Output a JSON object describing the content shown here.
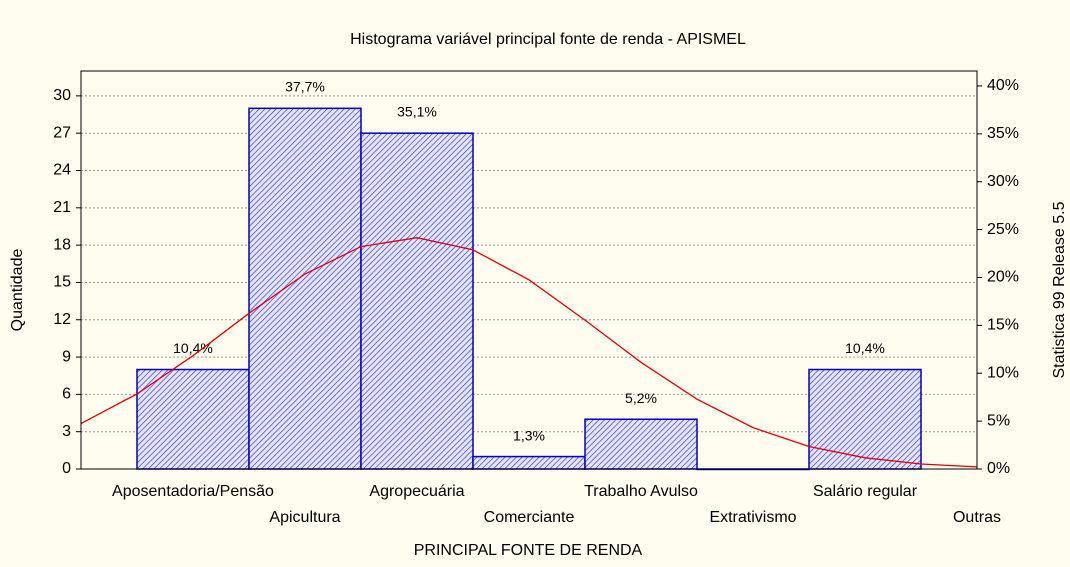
{
  "chart_data": {
    "type": "histogram",
    "title": "Histograma variável principal fonte de renda - APISMEL",
    "x_label": "PRINCIPAL FONTE DE RENDA",
    "y_label": "Quantidade",
    "y2_label": "Statistica 99 Release 5.5",
    "categories": [
      "Aposentadoria/Pensão",
      "Apicultura",
      "Agropecuária",
      "Comerciante",
      "Trabalho Avulso",
      "Extrativismo",
      "Salário regular",
      "Outras"
    ],
    "values": [
      8,
      29,
      27,
      1,
      4,
      0,
      8,
      null
    ],
    "percents": [
      10.4,
      37.7,
      35.1,
      1.3,
      5.2,
      null,
      10.4,
      null
    ],
    "percent_labels": [
      "10,4%",
      "37,7%",
      "35,1%",
      "1,3%",
      "5,2%",
      null,
      "10,4%",
      null
    ],
    "color": "#0000cc",
    "curve": {
      "color": "#e00000",
      "x": [
        -1,
        -0.5,
        0,
        0.5,
        1,
        1.5,
        2,
        2.5,
        3,
        3.5,
        4,
        4.5,
        5,
        5.5,
        6,
        6.5,
        7
      ],
      "values": [
        3.65,
        6.04,
        9.11,
        12.52,
        15.68,
        17.88,
        18.6,
        17.62,
        15.21,
        11.97,
        8.58,
        5.61,
        3.33,
        1.81,
        0.9,
        0.4,
        0.17
      ]
    },
    "ylim": [
      0,
      32
    ],
    "yticks": [
      0,
      3,
      6,
      9,
      12,
      15,
      18,
      21,
      24,
      27,
      30
    ],
    "y2lim": [
      0,
      41.56
    ],
    "y2ticks": [
      {
        "value": 0,
        "label": "0%"
      },
      {
        "value": 5,
        "label": "5%"
      },
      {
        "value": 10,
        "label": "10%"
      },
      {
        "value": 15,
        "label": "15%"
      },
      {
        "value": 20,
        "label": "20%"
      },
      {
        "value": 25,
        "label": "25%"
      },
      {
        "value": 30,
        "label": "30%"
      },
      {
        "value": 35,
        "label": "35%"
      },
      {
        "value": 40,
        "label": "40%"
      }
    ],
    "grid": true
  }
}
